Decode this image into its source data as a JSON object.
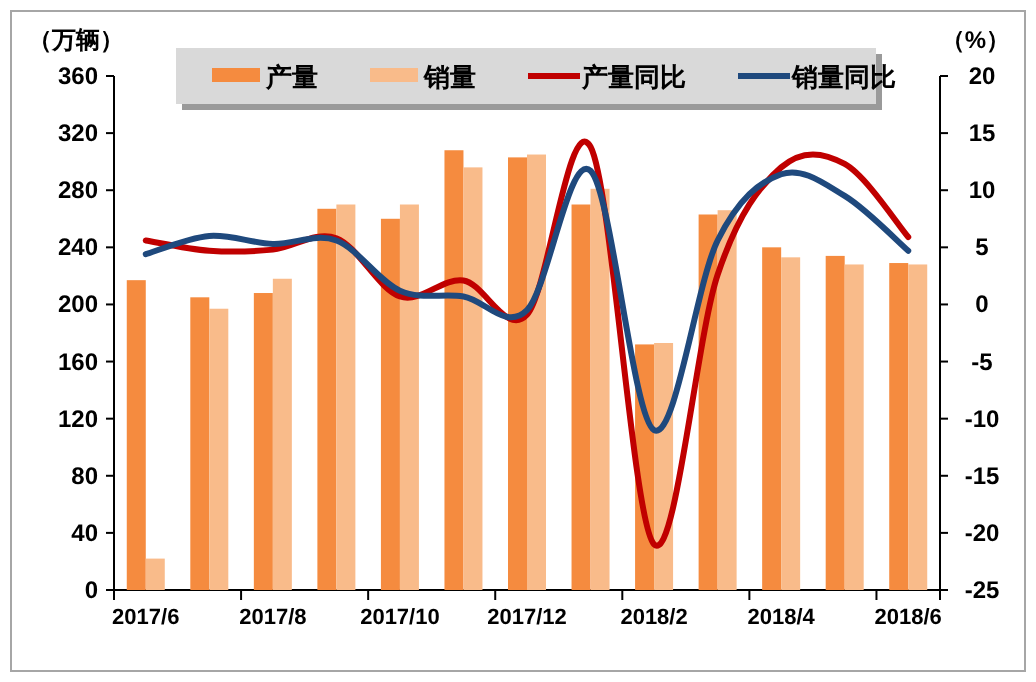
{
  "chart_data": {
    "type": "bar",
    "ylabel": "（万辆）",
    "y2label": "（%）",
    "categories": [
      "2017/6",
      null,
      "2017/8",
      null,
      "2017/10",
      null,
      "2017/12",
      null,
      "2018/2",
      null,
      "2018/4",
      null,
      "2018/6"
    ],
    "series": [
      {
        "name": "产量",
        "color": "#f58b3f",
        "values": [
          217,
          205,
          208,
          267,
          260,
          308,
          303,
          270,
          172,
          263,
          240,
          234,
          229
        ]
      },
      {
        "name": "销量",
        "color": "#f9bb8a",
        "values": [
          22,
          197,
          218,
          270,
          270,
          296,
          305,
          281,
          173,
          266,
          233,
          228,
          228
        ]
      },
      {
        "name": "产量同比",
        "type": "line",
        "axis": "y2",
        "color": "#c00000",
        "values": [
          5.6,
          4.7,
          4.8,
          5.8,
          0.7,
          2.1,
          -0.9,
          13.8,
          -21,
          2.6,
          12,
          12.3,
          5.9
        ]
      },
      {
        "name": "销量同比",
        "type": "line",
        "axis": "y2",
        "color": "#1f497d",
        "values": [
          4.4,
          6.0,
          5.3,
          5.6,
          1.2,
          0.7,
          -0.5,
          11.7,
          -11,
          5.6,
          11.4,
          9.5,
          4.7
        ]
      }
    ],
    "ylim": [
      0,
      360
    ],
    "yticks": [
      0,
      40,
      80,
      120,
      160,
      200,
      240,
      280,
      320,
      360
    ],
    "y2lim": [
      -25,
      20
    ],
    "y2ticks": [
      -25,
      -20,
      -15,
      -10,
      -5,
      0,
      5,
      10,
      15,
      20
    ],
    "legend": "top",
    "grid": false
  }
}
